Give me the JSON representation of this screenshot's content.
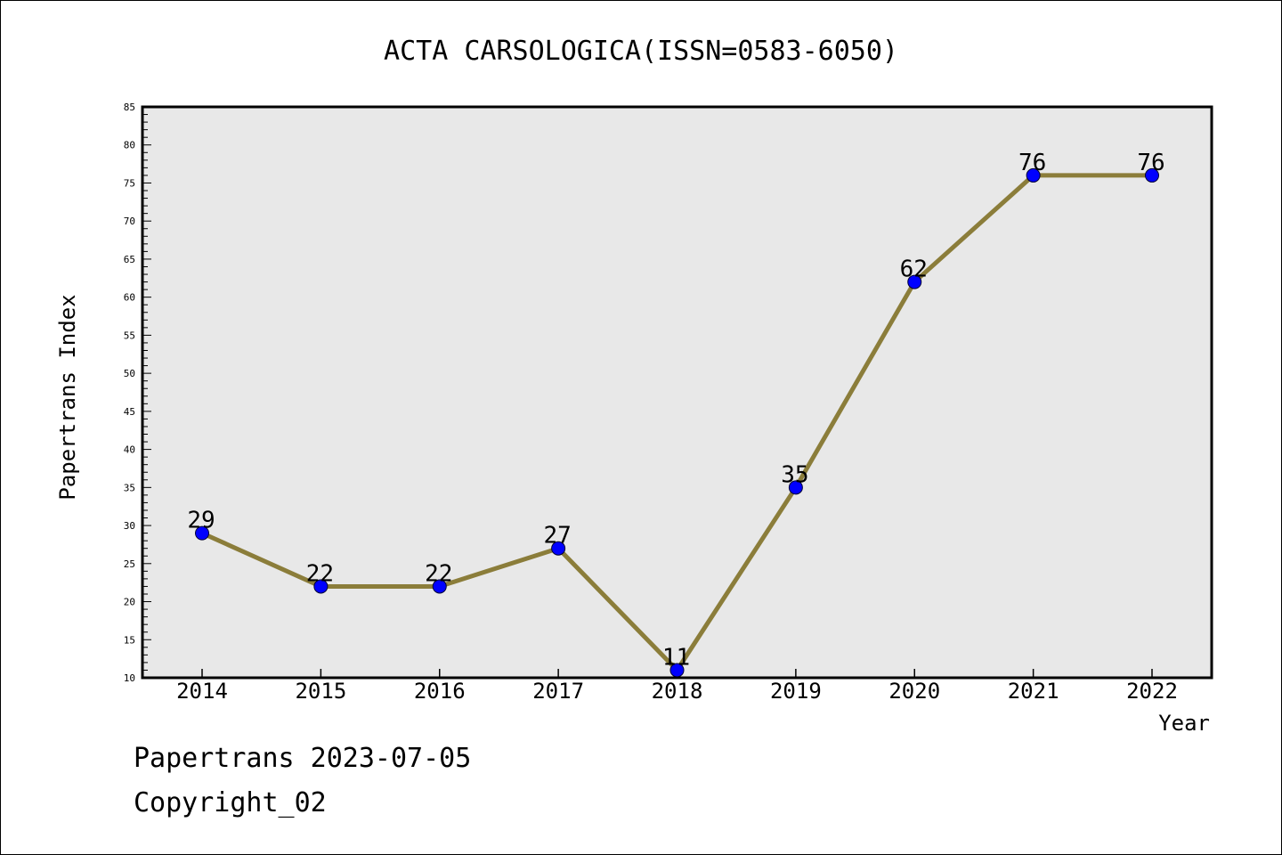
{
  "chart_data": {
    "type": "line",
    "title": "ACTA CARSOLOGICA(ISSN=0583-6050)",
    "xlabel": "Year",
    "ylabel": "Papertrans Index",
    "categories": [
      "2014",
      "2015",
      "2016",
      "2017",
      "2018",
      "2019",
      "2020",
      "2021",
      "2022"
    ],
    "series": [
      {
        "values": [
          29,
          22,
          22,
          27,
          11,
          35,
          62,
          76,
          76
        ]
      }
    ],
    "data_labels": [
      "29",
      "22",
      "22",
      "27",
      "11",
      "35",
      "62",
      "76",
      "76"
    ],
    "ylim": [
      10,
      85
    ],
    "yticks": [
      "10",
      "15",
      "20",
      "25",
      "30",
      "35",
      "40",
      "45",
      "50",
      "55",
      "60",
      "65",
      "70",
      "75",
      "80",
      "85"
    ],
    "grid": false,
    "legend": "none",
    "colors": {
      "line": "#8b7d3a",
      "marker": "#0000ff",
      "plot_bg": "#e8e8e8"
    }
  },
  "footer": {
    "date_text": "Papertrans 2023-07-05",
    "copyright_text": "Copyright_02"
  }
}
